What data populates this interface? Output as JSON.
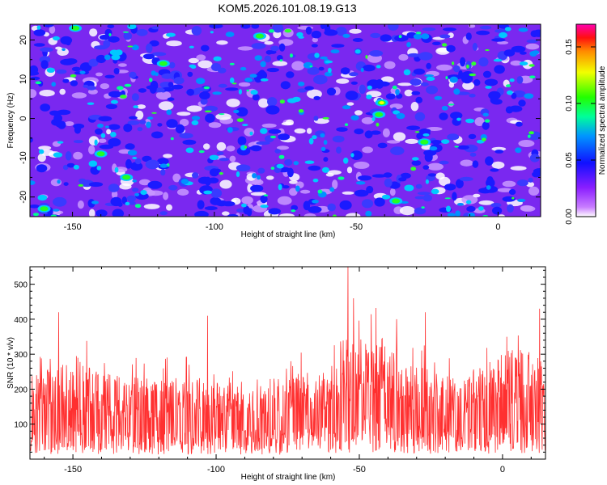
{
  "title": "KOM5.2026.101.08.19.G13",
  "chart_data": [
    {
      "type": "heatmap",
      "xlabel": "Height of straight line (km)",
      "ylabel": "Frequency (Hz)",
      "xlim": [
        -165,
        15
      ],
      "ylim": [
        -25,
        24
      ],
      "xticks": [
        -150,
        -100,
        -50,
        0
      ],
      "yticks": [
        -20,
        -10,
        0,
        10,
        20
      ],
      "colorbar": {
        "label": "Normalized spectral amplitude",
        "range": [
          0,
          0.17
        ],
        "ticks": [
          0.0,
          0.05,
          0.1,
          0.15
        ],
        "tick_labels": [
          "0.00",
          "0.05",
          "0.10",
          "0.15"
        ],
        "colors": [
          "#ffffff",
          "#9b30ff",
          "#0000ff",
          "#00ff00",
          "#ffff00",
          "#ff0000",
          "#ff00c0"
        ]
      },
      "hot_spots": [
        {
          "x": -41,
          "y": 4,
          "value": 0.12
        },
        {
          "x": -149,
          "y": 23,
          "value": 0.07
        },
        {
          "x": -140,
          "y": -9,
          "value": 0.08
        },
        {
          "x": -84,
          "y": 21,
          "value": 0.07
        },
        {
          "x": -42,
          "y": 1,
          "value": 0.07
        },
        {
          "x": -26,
          "y": -6,
          "value": 0.07
        },
        {
          "x": -118,
          "y": 14,
          "value": 0.07
        },
        {
          "x": -131,
          "y": -15,
          "value": 0.06
        },
        {
          "x": -160,
          "y": -23,
          "value": 0.06
        },
        {
          "x": -36,
          "y": -21,
          "value": 0.06
        }
      ]
    },
    {
      "type": "line",
      "xlabel": "Height of straight line (km)",
      "ylabel": "SNR (10 * v/v)",
      "xlim": [
        -165,
        15
      ],
      "ylim": [
        0,
        550
      ],
      "xticks": [
        -150,
        -100,
        -50,
        0
      ],
      "yticks": [
        100,
        200,
        300,
        400,
        500
      ],
      "color": "#ff3030",
      "peaks": [
        {
          "x": -155,
          "y": 420
        },
        {
          "x": -103,
          "y": 410
        },
        {
          "x": -54,
          "y": 550
        },
        {
          "x": -52,
          "y": 460
        },
        {
          "x": -37,
          "y": 400
        },
        {
          "x": -27,
          "y": 420
        },
        {
          "x": 13,
          "y": 430
        }
      ]
    }
  ]
}
